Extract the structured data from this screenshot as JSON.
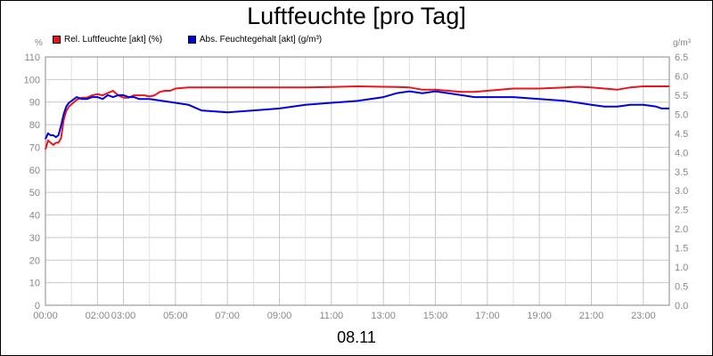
{
  "chart_data": {
    "type": "line",
    "title": "Luftfeuchte [pro Tag]",
    "date": "08.11",
    "y_left": {
      "unit": "%",
      "min": 0,
      "max": 110,
      "ticks": [
        "0",
        "10",
        "20",
        "30",
        "40",
        "50",
        "60",
        "70",
        "80",
        "90",
        "100",
        "110"
      ]
    },
    "y_right": {
      "unit": "g/m³",
      "min": 0,
      "max": 6.5,
      "ticks": [
        "0.0",
        "0.5",
        "1.0",
        "1.5",
        "2.0",
        "2.5",
        "3.0",
        "3.5",
        "4.0",
        "4.5",
        "5.0",
        "5.5",
        "6.0",
        "6.5"
      ]
    },
    "x_ticks": [
      "00:00",
      "02:00",
      "03:00",
      "05:00",
      "07:00",
      "09:00",
      "11:00",
      "13:00",
      "15:00",
      "17:00",
      "19:00",
      "21:00",
      "23:00"
    ],
    "grid": true,
    "legend_position": "top-left",
    "series": [
      {
        "name": "Rel. Luftfeuchte [akt] (%)",
        "color": "#e8161b",
        "axis": "left",
        "x_hours": [
          0,
          0.1,
          0.2,
          0.3,
          0.4,
          0.5,
          0.6,
          0.7,
          0.8,
          0.9,
          1.0,
          1.2,
          1.4,
          1.6,
          1.8,
          2.0,
          2.2,
          2.4,
          2.6,
          2.8,
          3.0,
          3.2,
          3.4,
          3.6,
          3.8,
          4.0,
          4.2,
          4.4,
          4.6,
          4.8,
          5.0,
          5.5,
          6,
          7,
          8,
          9,
          10,
          11,
          12,
          13,
          13.5,
          14,
          14.5,
          15,
          15.5,
          16,
          16.5,
          17,
          17.5,
          18,
          19,
          20,
          20.5,
          21,
          21.5,
          22,
          22.5,
          23,
          23.5,
          24
        ],
        "values": [
          69,
          73,
          72,
          71,
          72,
          72,
          74,
          82,
          86,
          88,
          89,
          91,
          92,
          92,
          93,
          93.5,
          93,
          94,
          95,
          93,
          92,
          92,
          93,
          93,
          93,
          92.5,
          93,
          94.5,
          95,
          95,
          96,
          96.5,
          96.5,
          96.5,
          96.5,
          96.5,
          96.5,
          96.7,
          97,
          96.8,
          96.7,
          96.5,
          95.5,
          95.5,
          95,
          94.5,
          94.5,
          95,
          95.5,
          96,
          96,
          96.5,
          96.8,
          96.5,
          96,
          95.5,
          96.5,
          97,
          97,
          97
        ]
      },
      {
        "name": "Abs. Feuchtegehalt [akt] (g/m³)",
        "color": "#0000e0",
        "axis": "right",
        "x_hours": [
          0,
          0.1,
          0.2,
          0.3,
          0.4,
          0.5,
          0.6,
          0.7,
          0.8,
          0.9,
          1.0,
          1.2,
          1.4,
          1.6,
          1.8,
          2.0,
          2.2,
          2.4,
          2.6,
          2.8,
          3.0,
          3.2,
          3.4,
          3.6,
          3.8,
          4.0,
          4.5,
          5,
          5.5,
          6,
          7,
          8,
          9,
          10,
          11,
          12,
          13,
          13.5,
          14,
          14.5,
          15,
          15.5,
          16,
          16.5,
          17,
          18,
          19,
          20,
          20.5,
          21,
          21.5,
          22,
          22.5,
          23,
          23.5,
          23.7,
          24
        ],
        "values": [
          4.35,
          4.5,
          4.45,
          4.45,
          4.4,
          4.45,
          4.7,
          5.0,
          5.2,
          5.3,
          5.35,
          5.45,
          5.4,
          5.4,
          5.45,
          5.45,
          5.4,
          5.5,
          5.45,
          5.5,
          5.5,
          5.45,
          5.45,
          5.4,
          5.4,
          5.4,
          5.35,
          5.3,
          5.25,
          5.1,
          5.05,
          5.1,
          5.15,
          5.25,
          5.3,
          5.35,
          5.45,
          5.55,
          5.6,
          5.55,
          5.6,
          5.55,
          5.5,
          5.45,
          5.45,
          5.45,
          5.4,
          5.35,
          5.3,
          5.25,
          5.2,
          5.2,
          5.25,
          5.25,
          5.2,
          5.15,
          5.15
        ]
      }
    ]
  }
}
